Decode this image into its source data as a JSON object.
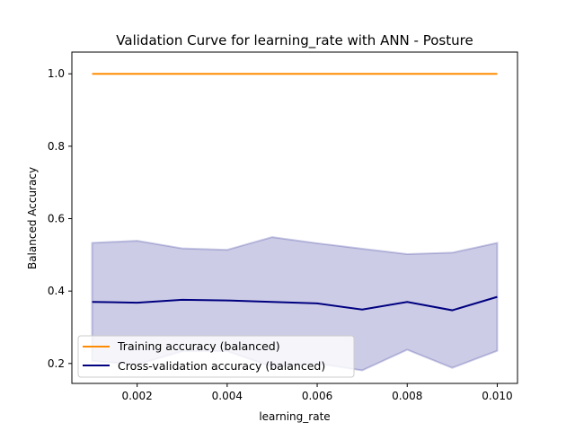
{
  "chart_data": {
    "type": "line",
    "title": "Validation Curve for learning_rate with ANN - Posture",
    "xlabel": "learning_rate",
    "ylabel": "Balanced Accuracy",
    "xlim": [
      0.00055,
      0.01045
    ],
    "ylim": [
      0.145,
      1.06
    ],
    "xticks": [
      0.002,
      0.004,
      0.006,
      0.008,
      0.01
    ],
    "xtick_labels": [
      "0.002",
      "0.004",
      "0.006",
      "0.008",
      "0.010"
    ],
    "yticks": [
      0.2,
      0.4,
      0.6,
      0.8,
      1.0
    ],
    "ytick_labels": [
      "0.2",
      "0.4",
      "0.6",
      "0.8",
      "1.0"
    ],
    "grid": false,
    "legend_position": "lower-left",
    "x": [
      0.001,
      0.002,
      0.003,
      0.004,
      0.005,
      0.006,
      0.007,
      0.008,
      0.009,
      0.01
    ],
    "series": [
      {
        "name": "Training accuracy (balanced)",
        "color": "#ff8c00",
        "values": [
          1.0,
          1.0,
          1.0,
          1.0,
          1.0,
          1.0,
          1.0,
          1.0,
          1.0,
          1.0
        ]
      },
      {
        "name": "Cross-validation accuracy (balanced)",
        "color": "#000080",
        "values": [
          0.37,
          0.368,
          0.376,
          0.374,
          0.37,
          0.366,
          0.349,
          0.37,
          0.347,
          0.384
        ],
        "band_upper": [
          0.533,
          0.539,
          0.518,
          0.514,
          0.549,
          0.532,
          0.517,
          0.502,
          0.506,
          0.533
        ],
        "band_lower": [
          0.207,
          0.197,
          0.234,
          0.234,
          0.191,
          0.2,
          0.181,
          0.238,
          0.188,
          0.235
        ],
        "band_color": "#000080"
      }
    ]
  }
}
